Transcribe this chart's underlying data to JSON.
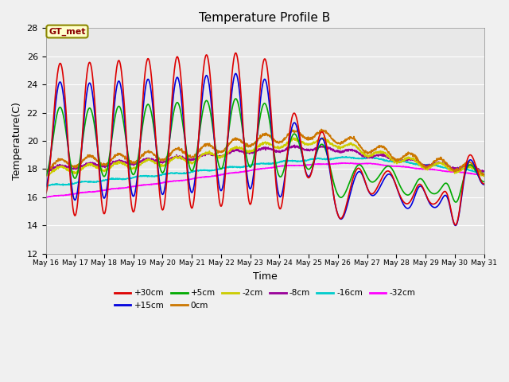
{
  "title": "Temperature Profile B",
  "xlabel": "Time",
  "ylabel": "Temperature(C)",
  "ylim": [
    12,
    28
  ],
  "yticks": [
    12,
    14,
    16,
    18,
    20,
    22,
    24,
    26,
    28
  ],
  "annotation": "GT_met",
  "series": {
    "+30cm": {
      "color": "#dd0000",
      "lw": 1.2
    },
    "+15cm": {
      "color": "#0000dd",
      "lw": 1.2
    },
    "+5cm": {
      "color": "#00aa00",
      "lw": 1.2
    },
    "0cm": {
      "color": "#cc7700",
      "lw": 1.2
    },
    "-2cm": {
      "color": "#cccc00",
      "lw": 1.2
    },
    "-8cm": {
      "color": "#990099",
      "lw": 1.2
    },
    "-16cm": {
      "color": "#00cccc",
      "lw": 1.2
    },
    "-32cm": {
      "color": "#ff00ff",
      "lw": 1.2
    }
  },
  "background_color": "#e8e8e8",
  "fig_facecolor": "#f0f0f0"
}
